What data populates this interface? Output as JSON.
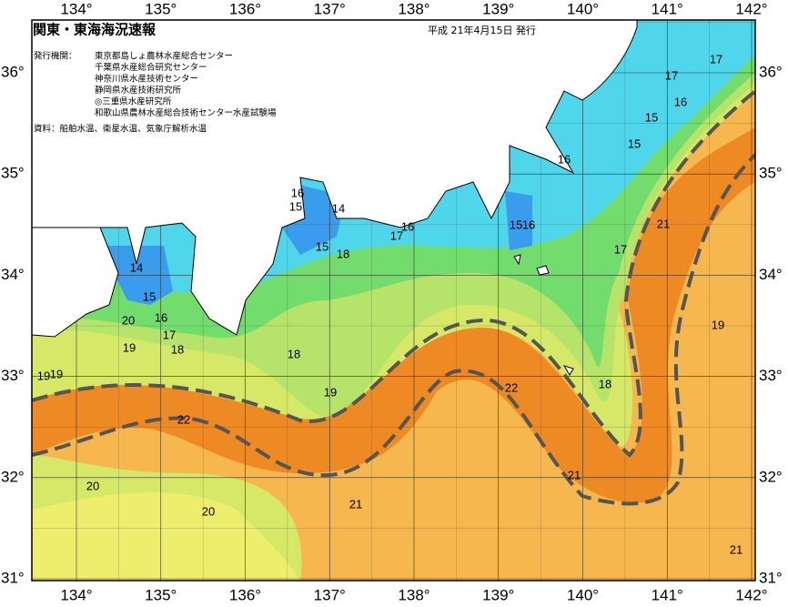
{
  "header": {
    "title": "関東・東海海況速報",
    "date": "平成 21年4月15日 発行"
  },
  "issuers": {
    "label": "発行機関：",
    "names": [
      "東京都島しょ農林水産総合センター",
      "千葉県水産総合研究センター",
      "神奈川県水産技術センター",
      "静岡県水産技術研究所",
      "◎三重県水産研究所",
      "和歌山県農林水産総合技術センター水産試験場"
    ]
  },
  "sources": "資料：船舶水温、衛星水温、気象庁解析水温",
  "longitude_labels": [
    "134°",
    "135°",
    "136°",
    "137°",
    "138°",
    "139°",
    "140°",
    "141°",
    "142°"
  ],
  "latitude_labels": [
    "36°",
    "35°",
    "34°",
    "33°",
    "32°",
    "31°"
  ],
  "contour_labels": [
    "17",
    "17",
    "16",
    "15",
    "15",
    "16",
    "16",
    "15",
    "14",
    "16",
    "17",
    "15",
    "16",
    "15",
    "18",
    "21",
    "17",
    "14",
    "15",
    "16",
    "20",
    "17",
    "19",
    "18",
    "18",
    "19",
    "19",
    "19",
    "19",
    "22",
    "18",
    "22",
    "21",
    "20",
    "21",
    "20",
    "21"
  ]
}
